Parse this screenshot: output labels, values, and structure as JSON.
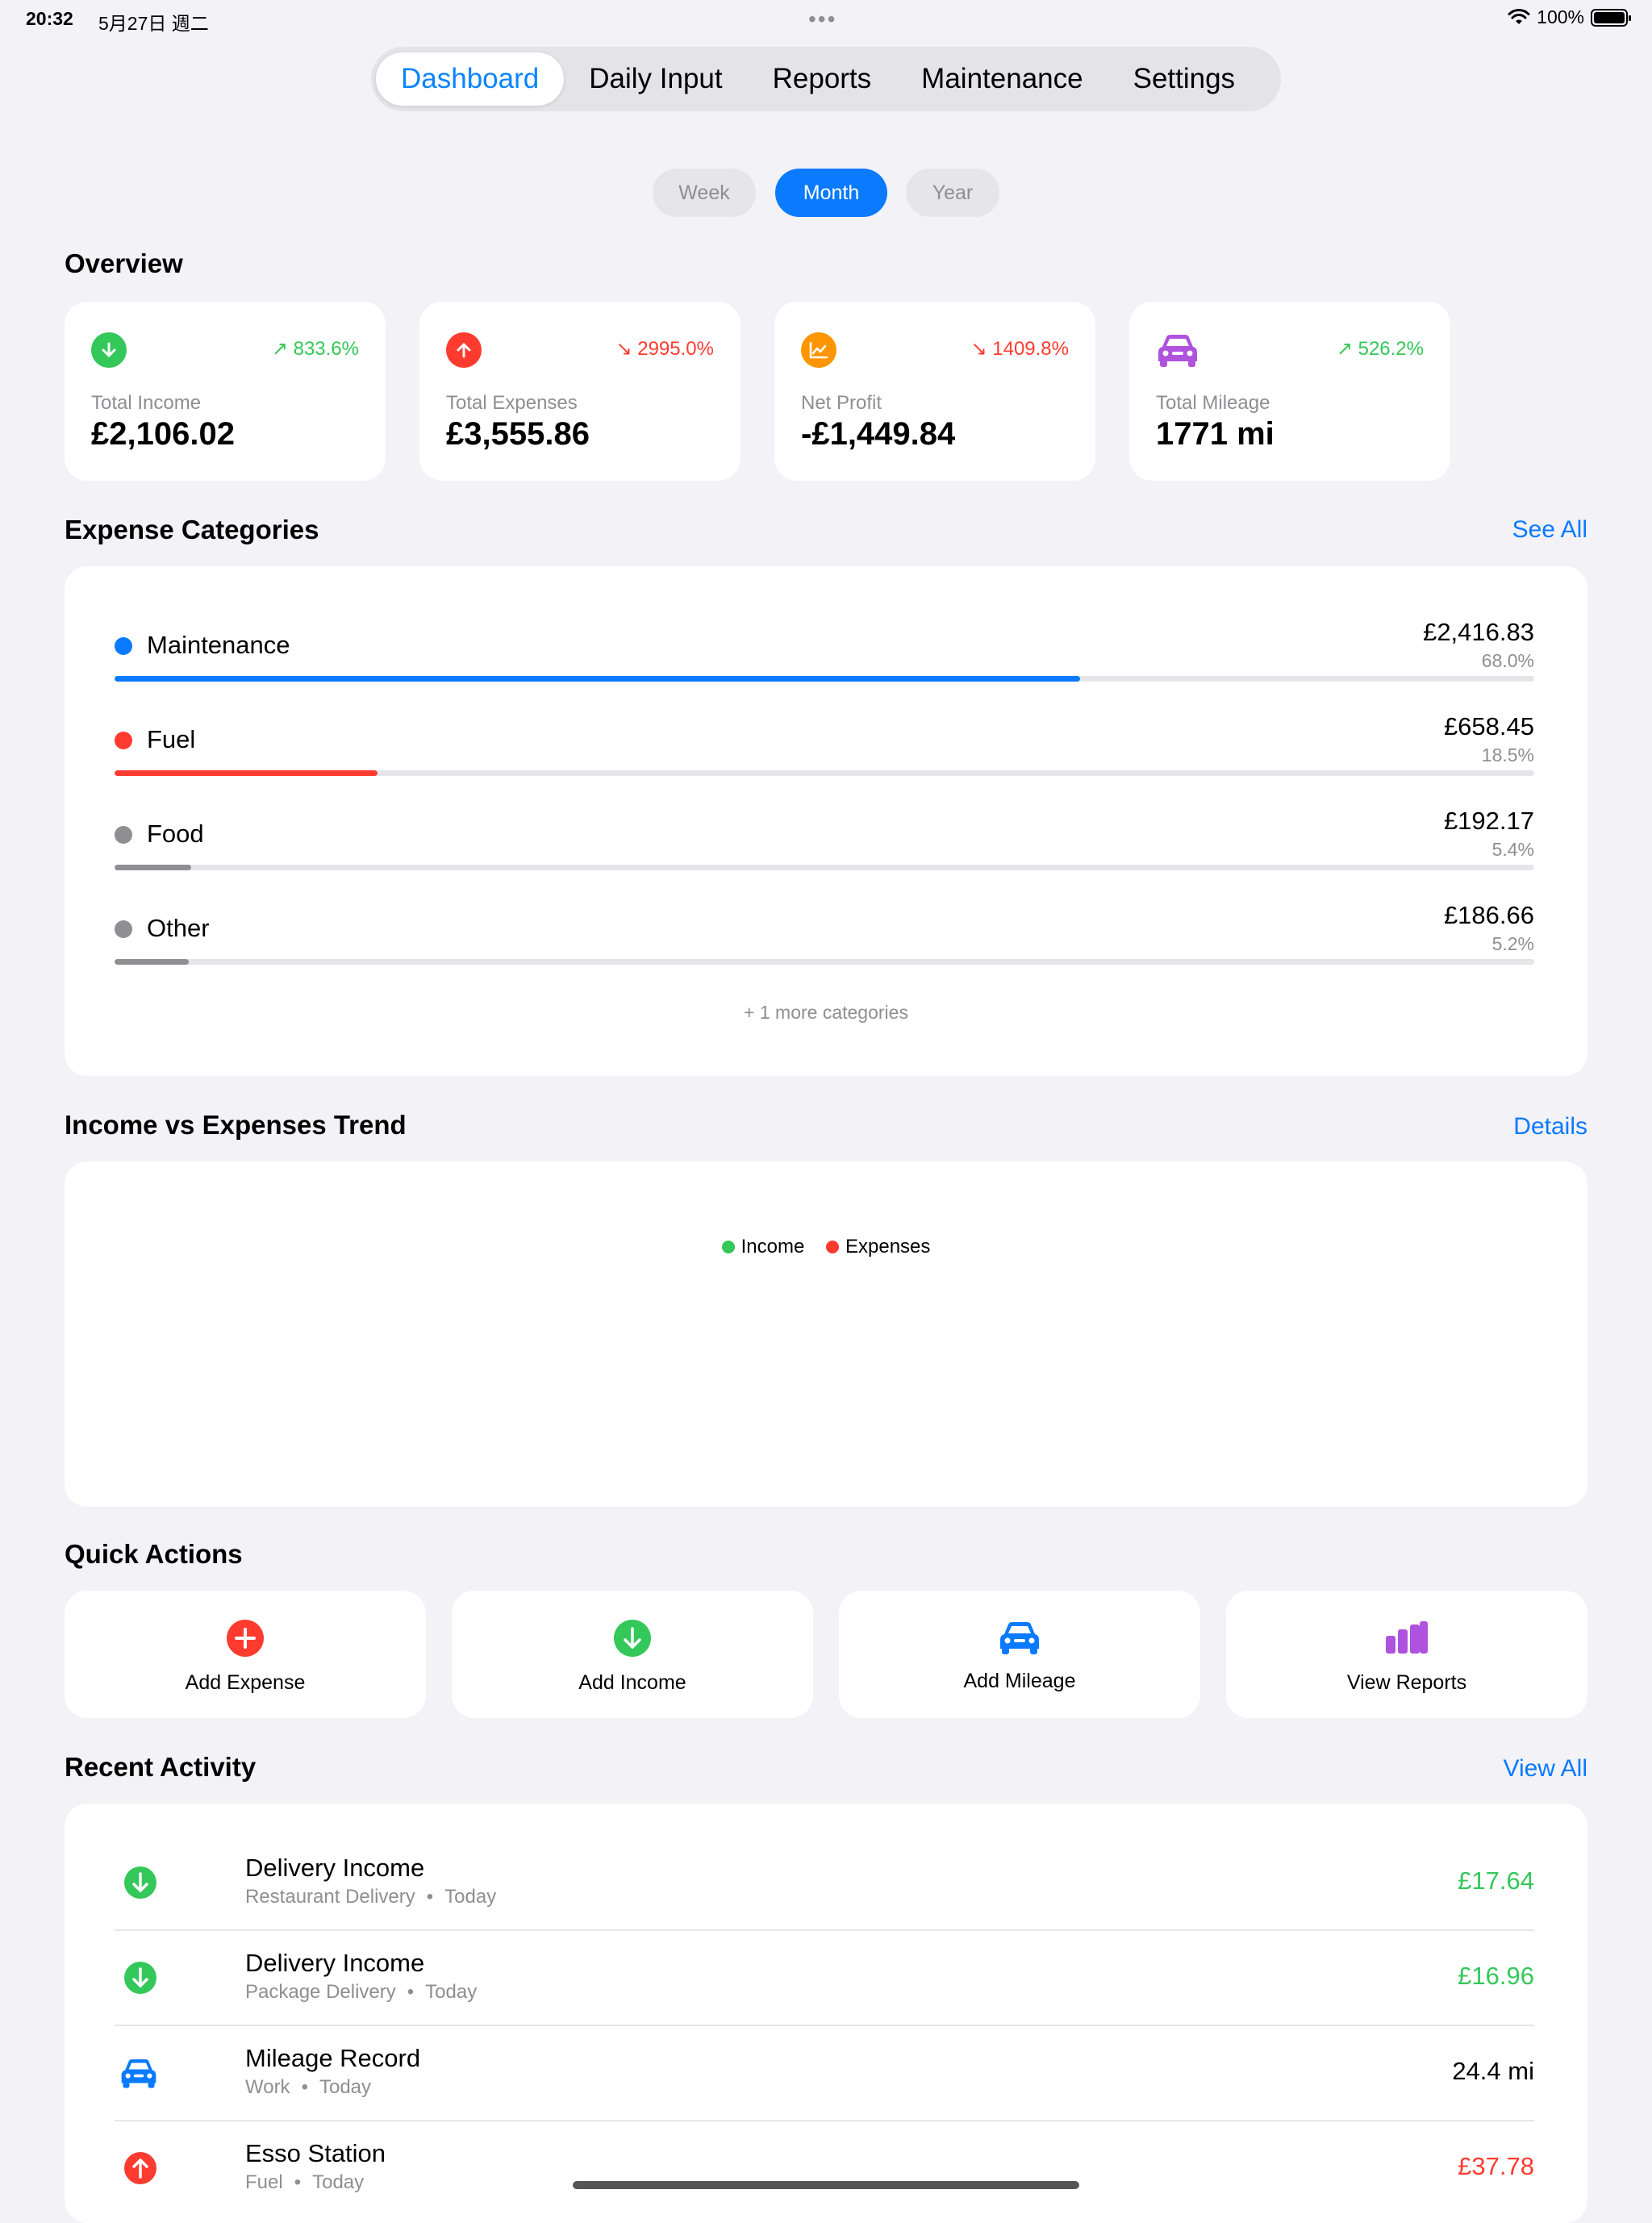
{
  "status_bar": {
    "time": "20:32",
    "date": "5月27日 週二",
    "dots": "•••",
    "battery": "100%"
  },
  "tabs": [
    {
      "label": "Dashboard",
      "active": true
    },
    {
      "label": "Daily Input",
      "active": false
    },
    {
      "label": "Reports",
      "active": false
    },
    {
      "label": "Maintenance",
      "active": false
    },
    {
      "label": "Settings",
      "active": false
    }
  ],
  "period": {
    "options": [
      "Week",
      "Month",
      "Year"
    ],
    "selected": "Month"
  },
  "overview": {
    "title": "Overview",
    "cards": [
      {
        "label": "Total Income",
        "value": "£2,106.02",
        "change": "833.6%",
        "trend": "up",
        "change_color": "#34C759",
        "icon": "arrow-down-circle-icon",
        "icon_color": "#34C759"
      },
      {
        "label": "Total Expenses",
        "value": "£3,555.86",
        "change": "2995.0%",
        "trend": "down",
        "change_color": "#FF3B30",
        "icon": "arrow-up-circle-icon",
        "icon_color": "#FF3B30"
      },
      {
        "label": "Net Profit",
        "value": "-£1,449.84",
        "change": "1409.8%",
        "trend": "down",
        "change_color": "#FF3B30",
        "icon": "chart-line-icon",
        "icon_color": "#FF9500"
      },
      {
        "label": "Total Mileage",
        "value": "1771 mi",
        "change": "526.2%",
        "trend": "up",
        "change_color": "#34C759",
        "icon": "car-icon",
        "icon_color": "#AF52DE"
      }
    ]
  },
  "expense_categories": {
    "title": "Expense Categories",
    "link": "See All",
    "items": [
      {
        "name": "Maintenance",
        "amount": "£2,416.83",
        "percent": "68.0%",
        "fraction": 0.68,
        "color": "#0A7AFF"
      },
      {
        "name": "Fuel",
        "amount": "£658.45",
        "percent": "18.5%",
        "fraction": 0.185,
        "color": "#FF3B30"
      },
      {
        "name": "Food",
        "amount": "£192.17",
        "percent": "5.4%",
        "fraction": 0.054,
        "color": "#8E8E93"
      },
      {
        "name": "Other",
        "amount": "£186.66",
        "percent": "5.2%",
        "fraction": 0.052,
        "color": "#8E8E93"
      }
    ],
    "more": "+ 1 more categories"
  },
  "trend": {
    "title": "Income vs Expenses Trend",
    "link": "Details",
    "legend": [
      {
        "name": "Income",
        "color": "#34C759"
      },
      {
        "name": "Expenses",
        "color": "#FF3B30"
      }
    ]
  },
  "quick_actions": {
    "title": "Quick Actions",
    "items": [
      {
        "label": "Add Expense",
        "icon": "plus-circle-icon",
        "color": "#FF3B30"
      },
      {
        "label": "Add Income",
        "icon": "arrow-down-circle-icon",
        "color": "#34C759"
      },
      {
        "label": "Add Mileage",
        "icon": "car-icon",
        "color": "#0A7AFF"
      },
      {
        "label": "View Reports",
        "icon": "bar-chart-icon",
        "color": "#AF52DE"
      }
    ]
  },
  "recent_activity": {
    "title": "Recent Activity",
    "link": "View All",
    "items": [
      {
        "title": "Delivery Income",
        "category": "Restaurant Delivery",
        "date": "Today",
        "amount": "£17.64",
        "amount_color": "#34C759",
        "icon": "arrow-down-circle-icon"
      },
      {
        "title": "Delivery Income",
        "category": "Package Delivery",
        "date": "Today",
        "amount": "£16.96",
        "amount_color": "#34C759",
        "icon": "arrow-down-circle-icon"
      },
      {
        "title": "Mileage Record",
        "category": "Work",
        "date": "Today",
        "amount": "24.4 mi",
        "amount_color": "#000000",
        "icon": "car-icon"
      },
      {
        "title": "Esso Station",
        "category": "Fuel",
        "date": "Today",
        "amount": "£37.78",
        "amount_color": "#FF3B30",
        "icon": "arrow-up-circle-icon"
      }
    ]
  }
}
